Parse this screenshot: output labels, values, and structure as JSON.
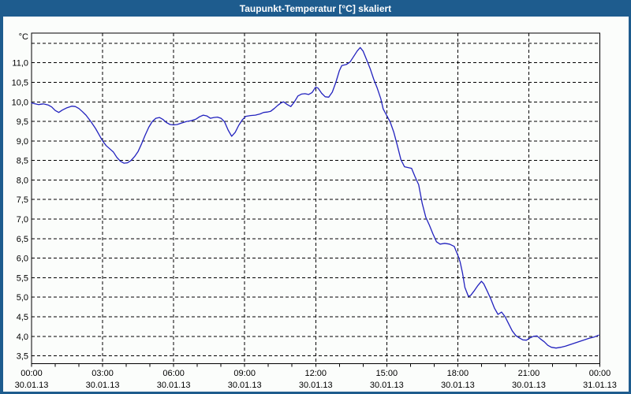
{
  "window": {
    "title": "Taupunkt-Temperatur [°C] skaliert",
    "colors": {
      "titlebar_bg": "#1E5C8E",
      "titlebar_text": "#FFFFFF",
      "frame": "#1E5C8E",
      "chart_bg": "#FBFDFB",
      "axis": "#000000"
    }
  },
  "chart_data": {
    "type": "line",
    "title": "Taupunkt-Temperatur [°C] skaliert",
    "y_unit_label": "°C",
    "grid": {
      "style": "dashed",
      "color": "#000000",
      "shown": true
    },
    "legend": {
      "shown": false
    },
    "x_axis": {
      "range_hours": [
        0,
        24
      ],
      "minor_tick_step_hours": 1,
      "gridlines_at_hours": [
        3,
        6,
        9,
        12,
        15,
        18,
        21
      ],
      "major_ticks": [
        {
          "hour": 0,
          "time": "00:00",
          "date": "30.01.13"
        },
        {
          "hour": 3,
          "time": "03:00",
          "date": "30.01.13"
        },
        {
          "hour": 6,
          "time": "06:00",
          "date": "30.01.13"
        },
        {
          "hour": 9,
          "time": "09:00",
          "date": "30.01.13"
        },
        {
          "hour": 12,
          "time": "12:00",
          "date": "30.01.13"
        },
        {
          "hour": 15,
          "time": "15:00",
          "date": "30.01.13"
        },
        {
          "hour": 18,
          "time": "18:00",
          "date": "30.01.13"
        },
        {
          "hour": 21,
          "time": "21:00",
          "date": "30.01.13"
        },
        {
          "hour": 24,
          "time": "00:00",
          "date": "31.01.13"
        }
      ]
    },
    "y_axis": {
      "range": [
        3.3,
        11.76
      ],
      "gridline_values": [
        3.5,
        4.0,
        4.5,
        5.0,
        5.5,
        6.0,
        6.5,
        7.0,
        7.5,
        8.0,
        8.5,
        9.0,
        9.5,
        10.0,
        10.5,
        11.0,
        11.5
      ],
      "labeled_ticks": [
        {
          "value": 11.0,
          "label": "11,0"
        },
        {
          "value": 10.5,
          "label": "10,5"
        },
        {
          "value": 10.0,
          "label": "10,0"
        },
        {
          "value": 9.5,
          "label": "9,5"
        },
        {
          "value": 9.0,
          "label": "9,0"
        },
        {
          "value": 8.5,
          "label": "8,5"
        },
        {
          "value": 8.0,
          "label": "8,0"
        },
        {
          "value": 7.5,
          "label": "7,5"
        },
        {
          "value": 7.0,
          "label": "7,0"
        },
        {
          "value": 6.5,
          "label": "6,5"
        },
        {
          "value": 6.0,
          "label": "6,0"
        },
        {
          "value": 5.5,
          "label": "5,5"
        },
        {
          "value": 5.0,
          "label": "5,0"
        },
        {
          "value": 4.5,
          "label": "4,5"
        },
        {
          "value": 4.0,
          "label": "4,0"
        },
        {
          "value": 3.5,
          "label": "3,5"
        }
      ]
    },
    "series": [
      {
        "name": "Taupunkt-Temperatur",
        "color": "#2222BE",
        "points": [
          [
            0.0,
            9.97
          ],
          [
            0.15,
            9.95
          ],
          [
            0.3,
            9.93
          ],
          [
            0.5,
            9.95
          ],
          [
            0.7,
            9.92
          ],
          [
            0.85,
            9.87
          ],
          [
            1.0,
            9.78
          ],
          [
            1.15,
            9.73
          ],
          [
            1.3,
            9.79
          ],
          [
            1.5,
            9.85
          ],
          [
            1.7,
            9.89
          ],
          [
            1.85,
            9.88
          ],
          [
            2.0,
            9.83
          ],
          [
            2.15,
            9.75
          ],
          [
            2.3,
            9.66
          ],
          [
            2.5,
            9.5
          ],
          [
            2.7,
            9.32
          ],
          [
            2.85,
            9.16
          ],
          [
            3.0,
            9.0
          ],
          [
            3.15,
            8.88
          ],
          [
            3.3,
            8.8
          ],
          [
            3.45,
            8.72
          ],
          [
            3.6,
            8.58
          ],
          [
            3.75,
            8.48
          ],
          [
            3.9,
            8.43
          ],
          [
            4.05,
            8.44
          ],
          [
            4.2,
            8.5
          ],
          [
            4.35,
            8.6
          ],
          [
            4.5,
            8.73
          ],
          [
            4.65,
            8.93
          ],
          [
            4.8,
            9.15
          ],
          [
            4.95,
            9.35
          ],
          [
            5.1,
            9.5
          ],
          [
            5.25,
            9.58
          ],
          [
            5.4,
            9.6
          ],
          [
            5.55,
            9.55
          ],
          [
            5.7,
            9.47
          ],
          [
            5.85,
            9.42
          ],
          [
            6.0,
            9.41
          ],
          [
            6.15,
            9.42
          ],
          [
            6.35,
            9.46
          ],
          [
            6.55,
            9.5
          ],
          [
            6.75,
            9.52
          ],
          [
            6.95,
            9.56
          ],
          [
            7.1,
            9.62
          ],
          [
            7.25,
            9.66
          ],
          [
            7.4,
            9.64
          ],
          [
            7.55,
            9.58
          ],
          [
            7.7,
            9.6
          ],
          [
            7.85,
            9.61
          ],
          [
            8.0,
            9.58
          ],
          [
            8.15,
            9.49
          ],
          [
            8.3,
            9.28
          ],
          [
            8.45,
            9.12
          ],
          [
            8.6,
            9.22
          ],
          [
            8.75,
            9.4
          ],
          [
            8.9,
            9.54
          ],
          [
            9.05,
            9.63
          ],
          [
            9.25,
            9.65
          ],
          [
            9.45,
            9.66
          ],
          [
            9.65,
            9.69
          ],
          [
            9.8,
            9.73
          ],
          [
            9.95,
            9.74
          ],
          [
            10.1,
            9.76
          ],
          [
            10.25,
            9.83
          ],
          [
            10.4,
            9.91
          ],
          [
            10.55,
            9.98
          ],
          [
            10.65,
            10.0
          ],
          [
            10.8,
            9.93
          ],
          [
            10.95,
            9.88
          ],
          [
            11.1,
            10.0
          ],
          [
            11.25,
            10.15
          ],
          [
            11.4,
            10.2
          ],
          [
            11.55,
            10.21
          ],
          [
            11.7,
            10.19
          ],
          [
            11.85,
            10.24
          ],
          [
            12.0,
            10.38
          ],
          [
            12.1,
            10.35
          ],
          [
            12.25,
            10.22
          ],
          [
            12.4,
            10.13
          ],
          [
            12.55,
            10.12
          ],
          [
            12.7,
            10.25
          ],
          [
            12.85,
            10.5
          ],
          [
            13.0,
            10.8
          ],
          [
            13.1,
            10.93
          ],
          [
            13.3,
            10.96
          ],
          [
            13.45,
            11.02
          ],
          [
            13.6,
            11.16
          ],
          [
            13.75,
            11.3
          ],
          [
            13.88,
            11.39
          ],
          [
            14.0,
            11.3
          ],
          [
            14.15,
            11.08
          ],
          [
            14.3,
            10.85
          ],
          [
            14.45,
            10.58
          ],
          [
            14.6,
            10.35
          ],
          [
            14.75,
            10.08
          ],
          [
            14.85,
            9.82
          ],
          [
            15.0,
            9.65
          ],
          [
            15.15,
            9.48
          ],
          [
            15.3,
            9.22
          ],
          [
            15.45,
            8.88
          ],
          [
            15.6,
            8.52
          ],
          [
            15.75,
            8.34
          ],
          [
            15.9,
            8.32
          ],
          [
            16.05,
            8.3
          ],
          [
            16.2,
            8.08
          ],
          [
            16.35,
            7.88
          ],
          [
            16.5,
            7.4
          ],
          [
            16.65,
            7.05
          ],
          [
            16.8,
            6.85
          ],
          [
            16.95,
            6.62
          ],
          [
            17.1,
            6.42
          ],
          [
            17.25,
            6.36
          ],
          [
            17.45,
            6.38
          ],
          [
            17.65,
            6.36
          ],
          [
            17.85,
            6.3
          ],
          [
            18.0,
            6.08
          ],
          [
            18.1,
            5.9
          ],
          [
            18.2,
            5.62
          ],
          [
            18.3,
            5.25
          ],
          [
            18.45,
            5.02
          ],
          [
            18.55,
            5.05
          ],
          [
            18.7,
            5.17
          ],
          [
            18.85,
            5.3
          ],
          [
            19.0,
            5.41
          ],
          [
            19.1,
            5.34
          ],
          [
            19.25,
            5.15
          ],
          [
            19.4,
            4.95
          ],
          [
            19.55,
            4.72
          ],
          [
            19.7,
            4.56
          ],
          [
            19.85,
            4.62
          ],
          [
            20.0,
            4.5
          ],
          [
            20.15,
            4.32
          ],
          [
            20.3,
            4.14
          ],
          [
            20.45,
            4.02
          ],
          [
            20.6,
            3.96
          ],
          [
            20.75,
            3.91
          ],
          [
            20.9,
            3.9
          ],
          [
            21.05,
            3.96
          ],
          [
            21.2,
            4.0
          ],
          [
            21.35,
            4.01
          ],
          [
            21.5,
            3.93
          ],
          [
            21.65,
            3.86
          ],
          [
            21.8,
            3.77
          ],
          [
            21.95,
            3.72
          ],
          [
            22.15,
            3.7
          ],
          [
            22.35,
            3.72
          ],
          [
            22.55,
            3.75
          ],
          [
            22.75,
            3.79
          ],
          [
            22.95,
            3.83
          ],
          [
            23.15,
            3.87
          ],
          [
            23.35,
            3.91
          ],
          [
            23.55,
            3.95
          ],
          [
            23.75,
            3.98
          ],
          [
            23.95,
            4.03
          ]
        ]
      }
    ]
  }
}
